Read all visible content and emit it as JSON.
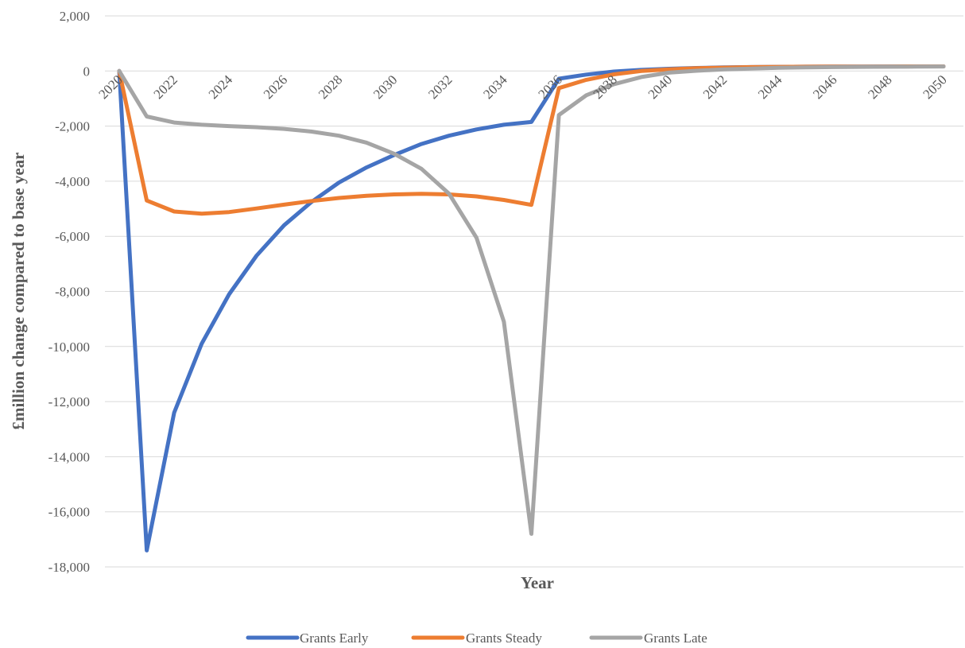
{
  "chart_data": {
    "type": "line",
    "xlabel": "Year",
    "ylabel": "£million change compared to base year",
    "ylim": [
      -18000,
      2000
    ],
    "yticks": [
      2000,
      0,
      -2000,
      -4000,
      -6000,
      -8000,
      -10000,
      -12000,
      -14000,
      -16000,
      -18000
    ],
    "ytick_labels": [
      "2,000",
      "0",
      "-2,000",
      "-4,000",
      "-6,000",
      "-8,000",
      "-10,000",
      "-12,000",
      "-14,000",
      "-16,000",
      "-18,000"
    ],
    "xticks": [
      2020,
      2022,
      2024,
      2026,
      2028,
      2030,
      2032,
      2034,
      2036,
      2038,
      2040,
      2042,
      2044,
      2046,
      2048,
      2050
    ],
    "xtick_labels": [
      "2020",
      "2022",
      "2024",
      "2026",
      "2028",
      "2030",
      "2032",
      "2034",
      "2036",
      "2038",
      "2040",
      "2042",
      "2044",
      "2046",
      "2048",
      "2050"
    ],
    "grid": "horizontal",
    "legend": "bottom",
    "x": [
      2020,
      2021,
      2022,
      2023,
      2024,
      2025,
      2026,
      2027,
      2028,
      2029,
      2030,
      2031,
      2032,
      2033,
      2034,
      2035,
      2036,
      2037,
      2038,
      2039,
      2040,
      2041,
      2042,
      2043,
      2044,
      2045,
      2046,
      2047,
      2048,
      2049,
      2050
    ],
    "series": [
      {
        "name": "Grants Early",
        "color": "#4472c4",
        "values": [
          0,
          -17400,
          -12400,
          -9900,
          -8100,
          -6700,
          -5600,
          -4750,
          -4050,
          -3500,
          -3050,
          -2650,
          -2350,
          -2120,
          -1950,
          -1850,
          -280,
          -130,
          -20,
          40,
          80,
          110,
          130,
          140,
          150,
          155,
          160,
          162,
          165,
          166,
          168
        ]
      },
      {
        "name": "Grants Steady",
        "color": "#ed7d31",
        "values": [
          0,
          -4700,
          -5100,
          -5180,
          -5120,
          -4990,
          -4850,
          -4720,
          -4610,
          -4530,
          -4480,
          -4460,
          -4480,
          -4550,
          -4680,
          -4860,
          -620,
          -320,
          -120,
          0,
          60,
          100,
          120,
          140,
          150,
          155,
          160,
          162,
          165,
          166,
          168
        ]
      },
      {
        "name": "Grants Late",
        "color": "#a5a5a5",
        "values": [
          0,
          -1650,
          -1870,
          -1950,
          -2000,
          -2040,
          -2100,
          -2200,
          -2350,
          -2600,
          -3000,
          -3550,
          -4450,
          -6050,
          -9100,
          -16800,
          -1600,
          -880,
          -480,
          -220,
          -60,
          10,
          60,
          90,
          115,
          130,
          140,
          150,
          155,
          160,
          165
        ]
      }
    ]
  }
}
